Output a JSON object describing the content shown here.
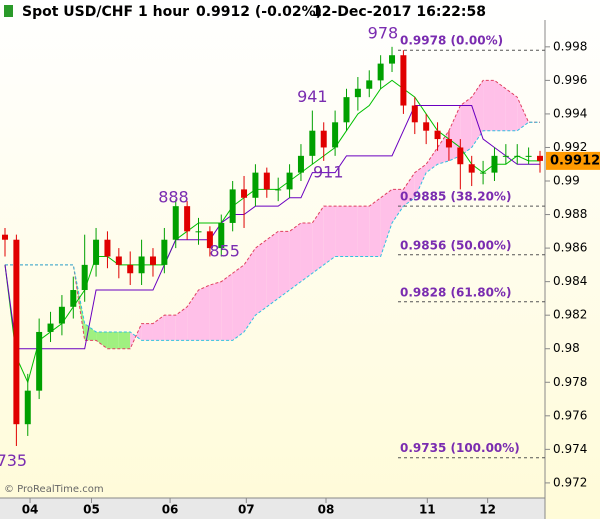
{
  "header": {
    "symbol": "Spot USD/CHF",
    "timeframe": "1 hour",
    "quote": "0.9912 (-0.02%)",
    "timestamp": "12-Dec-2017 16:22:58"
  },
  "watermark": "© ProRealTime.com",
  "chart_data": {
    "type": "candlestick",
    "ylim": [
      0.9711,
      0.9996
    ],
    "yticks": [
      0.972,
      0.974,
      0.976,
      0.978,
      0.98,
      0.982,
      0.984,
      0.986,
      0.988,
      0.99,
      0.992,
      0.994,
      0.996,
      0.998
    ],
    "xlim": [
      0,
      47
    ],
    "xticks": [
      {
        "value": 2.2,
        "label": "04"
      },
      {
        "value": 7.6,
        "label": "05"
      },
      {
        "value": 14.5,
        "label": "06"
      },
      {
        "value": 21.2,
        "label": "07"
      },
      {
        "value": 28.2,
        "label": "08"
      },
      {
        "value": 37.1,
        "label": "11"
      },
      {
        "value": 42.4,
        "label": "12"
      }
    ],
    "up_color": "#00a000",
    "down_color": "#e00000",
    "open": [
      0.9868,
      0.9865,
      0.9755,
      0.9775,
      0.981,
      0.9815,
      0.9825,
      0.9835,
      0.985,
      0.9865,
      0.9855,
      0.985,
      0.9845,
      0.9855,
      0.985,
      0.9865,
      0.9885,
      0.987,
      0.987,
      0.986,
      0.9875,
      0.9895,
      0.989,
      0.9905,
      0.9895,
      0.9895,
      0.9905,
      0.9915,
      0.993,
      0.992,
      0.9935,
      0.995,
      0.9955,
      0.996,
      0.997,
      0.9975,
      0.9945,
      0.9935,
      0.993,
      0.9925,
      0.992,
      0.991,
      0.9905,
      0.9905,
      0.9915,
      0.9915,
      0.9915,
      0.9915
    ],
    "high": [
      0.9872,
      0.9868,
      0.9785,
      0.9818,
      0.9822,
      0.9832,
      0.9843,
      0.9868,
      0.9872,
      0.987,
      0.986,
      0.9858,
      0.9865,
      0.986,
      0.9872,
      0.9889,
      0.9888,
      0.9878,
      0.9873,
      0.988,
      0.99,
      0.9903,
      0.991,
      0.9908,
      0.9902,
      0.991,
      0.9922,
      0.9942,
      0.9935,
      0.9942,
      0.9955,
      0.9962,
      0.9966,
      0.9975,
      0.998,
      0.9978,
      0.995,
      0.994,
      0.9935,
      0.993,
      0.9925,
      0.9915,
      0.9912,
      0.992,
      0.9922,
      0.9922,
      0.992,
      0.9918
    ],
    "low": [
      0.9855,
      0.9742,
      0.9748,
      0.977,
      0.9804,
      0.9808,
      0.9818,
      0.9828,
      0.9843,
      0.9848,
      0.9842,
      0.9838,
      0.9838,
      0.9843,
      0.9845,
      0.986,
      0.9865,
      0.9862,
      0.9855,
      0.9855,
      0.987,
      0.9872,
      0.9885,
      0.989,
      0.9888,
      0.989,
      0.99,
      0.991,
      0.9912,
      0.9915,
      0.993,
      0.9942,
      0.995,
      0.9955,
      0.9965,
      0.994,
      0.9928,
      0.9922,
      0.9918,
      0.9912,
      0.9895,
      0.9897,
      0.9898,
      0.99,
      0.991,
      0.991,
      0.991,
      0.9905
    ],
    "close": [
      0.9865,
      0.9755,
      0.9775,
      0.981,
      0.9815,
      0.9825,
      0.9835,
      0.985,
      0.9865,
      0.9855,
      0.985,
      0.9845,
      0.9855,
      0.985,
      0.9865,
      0.9885,
      0.987,
      0.987,
      0.986,
      0.9875,
      0.9895,
      0.989,
      0.9905,
      0.9895,
      0.9895,
      0.9905,
      0.9915,
      0.993,
      0.992,
      0.9935,
      0.995,
      0.9955,
      0.996,
      0.997,
      0.9975,
      0.9945,
      0.9935,
      0.993,
      0.9925,
      0.992,
      0.991,
      0.9905,
      0.9905,
      0.9915,
      0.9915,
      0.9915,
      0.9915,
      0.9912
    ],
    "lines": [
      {
        "color": "#00c000",
        "values": [
          0.985,
          0.9795,
          0.978,
          0.9805,
          0.981,
          0.9815,
          0.9825,
          0.9835,
          0.9855,
          0.9855,
          0.985,
          0.985,
          0.985,
          0.985,
          0.985,
          0.9865,
          0.987,
          0.9875,
          0.9875,
          0.9875,
          0.9885,
          0.989,
          0.9895,
          0.9895,
          0.9895,
          0.99,
          0.9905,
          0.991,
          0.9915,
          0.992,
          0.993,
          0.994,
          0.9945,
          0.9955,
          0.996,
          0.9955,
          0.995,
          0.994,
          0.993,
          0.9925,
          0.992,
          0.991,
          0.9905,
          0.991,
          0.991,
          0.9915,
          0.9912,
          0.9912
        ]
      },
      {
        "color": "#6a00c0",
        "values": [
          0.985,
          0.98,
          0.98,
          0.98,
          0.98,
          0.98,
          0.98,
          0.98,
          0.9835,
          0.9835,
          0.9835,
          0.9835,
          0.9835,
          0.9835,
          0.985,
          0.9865,
          0.9865,
          0.9865,
          0.9865,
          0.9875,
          0.988,
          0.988,
          0.9885,
          0.9885,
          0.9885,
          0.989,
          0.989,
          0.9905,
          0.9905,
          0.9905,
          0.9915,
          0.9915,
          0.9915,
          0.9915,
          0.9915,
          0.993,
          0.9945,
          0.9945,
          0.9945,
          0.9945,
          0.9945,
          0.9945,
          0.9925,
          0.992,
          0.9915,
          0.991,
          0.991,
          0.991
        ]
      }
    ],
    "cloud": {
      "a_color": "#e04060",
      "b_color": "#30c0e0",
      "bull_fill": "#a0f080",
      "bear_fill": "#ffc0e8",
      "a": [
        0.985,
        0.985,
        0.985,
        0.985,
        0.985,
        0.985,
        0.985,
        0.9805,
        0.9805,
        0.98,
        0.98,
        0.98,
        0.9815,
        0.9815,
        0.982,
        0.982,
        0.9825,
        0.9835,
        0.9838,
        0.984,
        0.9845,
        0.985,
        0.986,
        0.9865,
        0.987,
        0.987,
        0.9875,
        0.9875,
        0.9885,
        0.9885,
        0.9885,
        0.9885,
        0.9885,
        0.989,
        0.9895,
        0.9895,
        0.9905,
        0.991,
        0.992,
        0.993,
        0.9945,
        0.995,
        0.996,
        0.996,
        0.9955,
        0.995,
        0.9935,
        0.9935
      ],
      "b": [
        0.985,
        0.985,
        0.985,
        0.985,
        0.985,
        0.985,
        0.985,
        0.9815,
        0.981,
        0.981,
        0.981,
        0.981,
        0.9805,
        0.9805,
        0.9805,
        0.9805,
        0.9805,
        0.9805,
        0.9805,
        0.9805,
        0.9805,
        0.981,
        0.982,
        0.9825,
        0.983,
        0.9835,
        0.984,
        0.9845,
        0.985,
        0.9855,
        0.9855,
        0.9855,
        0.9855,
        0.9855,
        0.9875,
        0.9885,
        0.989,
        0.9905,
        0.991,
        0.9912,
        0.9915,
        0.992,
        0.993,
        0.993,
        0.993,
        0.993,
        0.9935,
        0.9935
      ]
    },
    "fib_levels": [
      {
        "value": 0.9978,
        "label": "0.9978 (0.00%)"
      },
      {
        "value": 0.9885,
        "label": "0.9885 (38.20%)"
      },
      {
        "value": 0.9856,
        "label": "0.9856 (50.00%)"
      },
      {
        "value": 0.9828,
        "label": "0.9828 (61.80%)"
      },
      {
        "value": 0.9735,
        "label": "0.9735 (100.00%)"
      }
    ],
    "annotations": [
      {
        "text": "978",
        "x": 33.2,
        "y": 0.9983
      },
      {
        "text": "941",
        "x": 27,
        "y": 0.9945
      },
      {
        "text": "911",
        "x": 28.4,
        "y": 0.99
      },
      {
        "text": "888",
        "x": 14.8,
        "y": 0.9885
      },
      {
        "text": "855",
        "x": 19.3,
        "y": 0.9853
      },
      {
        "text": "735",
        "x": 0.6,
        "y": 0.9728
      }
    ],
    "last_price": 0.9912,
    "last_price_color": "#ff9a00"
  }
}
